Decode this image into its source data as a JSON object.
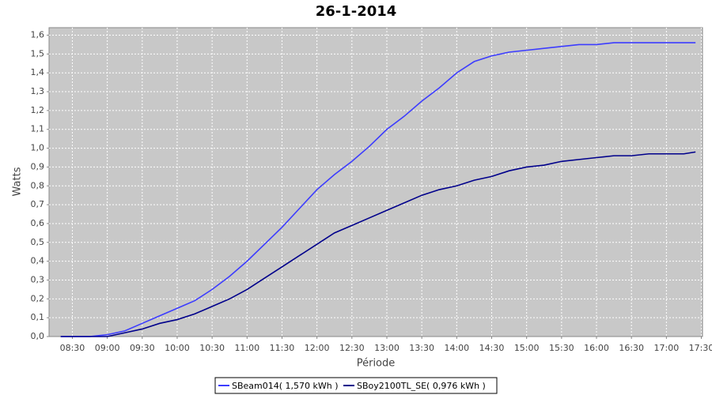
{
  "chart_data": {
    "type": "line",
    "title": "26-1-2014",
    "xlabel": "Période",
    "ylabel": "Watts",
    "x": [
      "08:20",
      "08:30",
      "08:45",
      "09:00",
      "09:15",
      "09:30",
      "09:45",
      "10:00",
      "10:15",
      "10:30",
      "10:45",
      "11:00",
      "11:15",
      "11:30",
      "11:45",
      "12:00",
      "12:15",
      "12:30",
      "12:45",
      "13:00",
      "13:15",
      "13:30",
      "13:45",
      "14:00",
      "14:15",
      "14:30",
      "14:45",
      "15:00",
      "15:15",
      "15:30",
      "15:45",
      "16:00",
      "16:15",
      "16:30",
      "16:45",
      "17:00",
      "17:15",
      "17:25"
    ],
    "series": [
      {
        "name": "SBeam014( 1,570 kWh )",
        "color": "#3c3cff",
        "values": [
          0,
          0,
          0,
          0.01,
          0.03,
          0.07,
          0.11,
          0.15,
          0.19,
          0.25,
          0.32,
          0.4,
          0.49,
          0.58,
          0.68,
          0.78,
          0.86,
          0.93,
          1.01,
          1.1,
          1.17,
          1.25,
          1.32,
          1.4,
          1.46,
          1.49,
          1.51,
          1.52,
          1.53,
          1.54,
          1.55,
          1.55,
          1.56,
          1.56,
          1.56,
          1.56,
          1.56,
          1.56
        ]
      },
      {
        "name": "SBoy2100TL_SE( 0,976 kWh )",
        "color": "#00008b",
        "values": [
          0,
          0,
          0,
          0,
          0.02,
          0.04,
          0.07,
          0.09,
          0.12,
          0.16,
          0.2,
          0.25,
          0.31,
          0.37,
          0.43,
          0.49,
          0.55,
          0.59,
          0.63,
          0.67,
          0.71,
          0.75,
          0.78,
          0.8,
          0.83,
          0.85,
          0.88,
          0.9,
          0.91,
          0.93,
          0.94,
          0.95,
          0.96,
          0.96,
          0.97,
          0.97,
          0.97,
          0.98
        ]
      }
    ],
    "xlim": [
      "08:10",
      "17:31"
    ],
    "xticks": [
      "08:30",
      "09:00",
      "09:30",
      "10:00",
      "10:30",
      "11:00",
      "11:30",
      "12:00",
      "12:30",
      "13:00",
      "13:30",
      "14:00",
      "14:30",
      "15:00",
      "15:30",
      "16:00",
      "16:30",
      "17:00",
      "17:30"
    ],
    "ylim": [
      0,
      1.64
    ],
    "yticks": [
      {
        "value": 0,
        "label": "0,0"
      },
      {
        "value": 0.1,
        "label": "0,1"
      },
      {
        "value": 0.2,
        "label": "0,2"
      },
      {
        "value": 0.3,
        "label": "0,3"
      },
      {
        "value": 0.4,
        "label": "0,4"
      },
      {
        "value": 0.5,
        "label": "0,5"
      },
      {
        "value": 0.6,
        "label": "0,6"
      },
      {
        "value": 0.7,
        "label": "0,7"
      },
      {
        "value": 0.8,
        "label": "0,8"
      },
      {
        "value": 0.9,
        "label": "0,9"
      },
      {
        "value": 1,
        "label": "1,0"
      },
      {
        "value": 1.1,
        "label": "1,1"
      },
      {
        "value": 1.2,
        "label": "1,2"
      },
      {
        "value": 1.3,
        "label": "1,3"
      },
      {
        "value": 1.4,
        "label": "1,4"
      },
      {
        "value": 1.5,
        "label": "1,5"
      },
      {
        "value": 1.6,
        "label": "1,6"
      }
    ],
    "grid": true
  }
}
